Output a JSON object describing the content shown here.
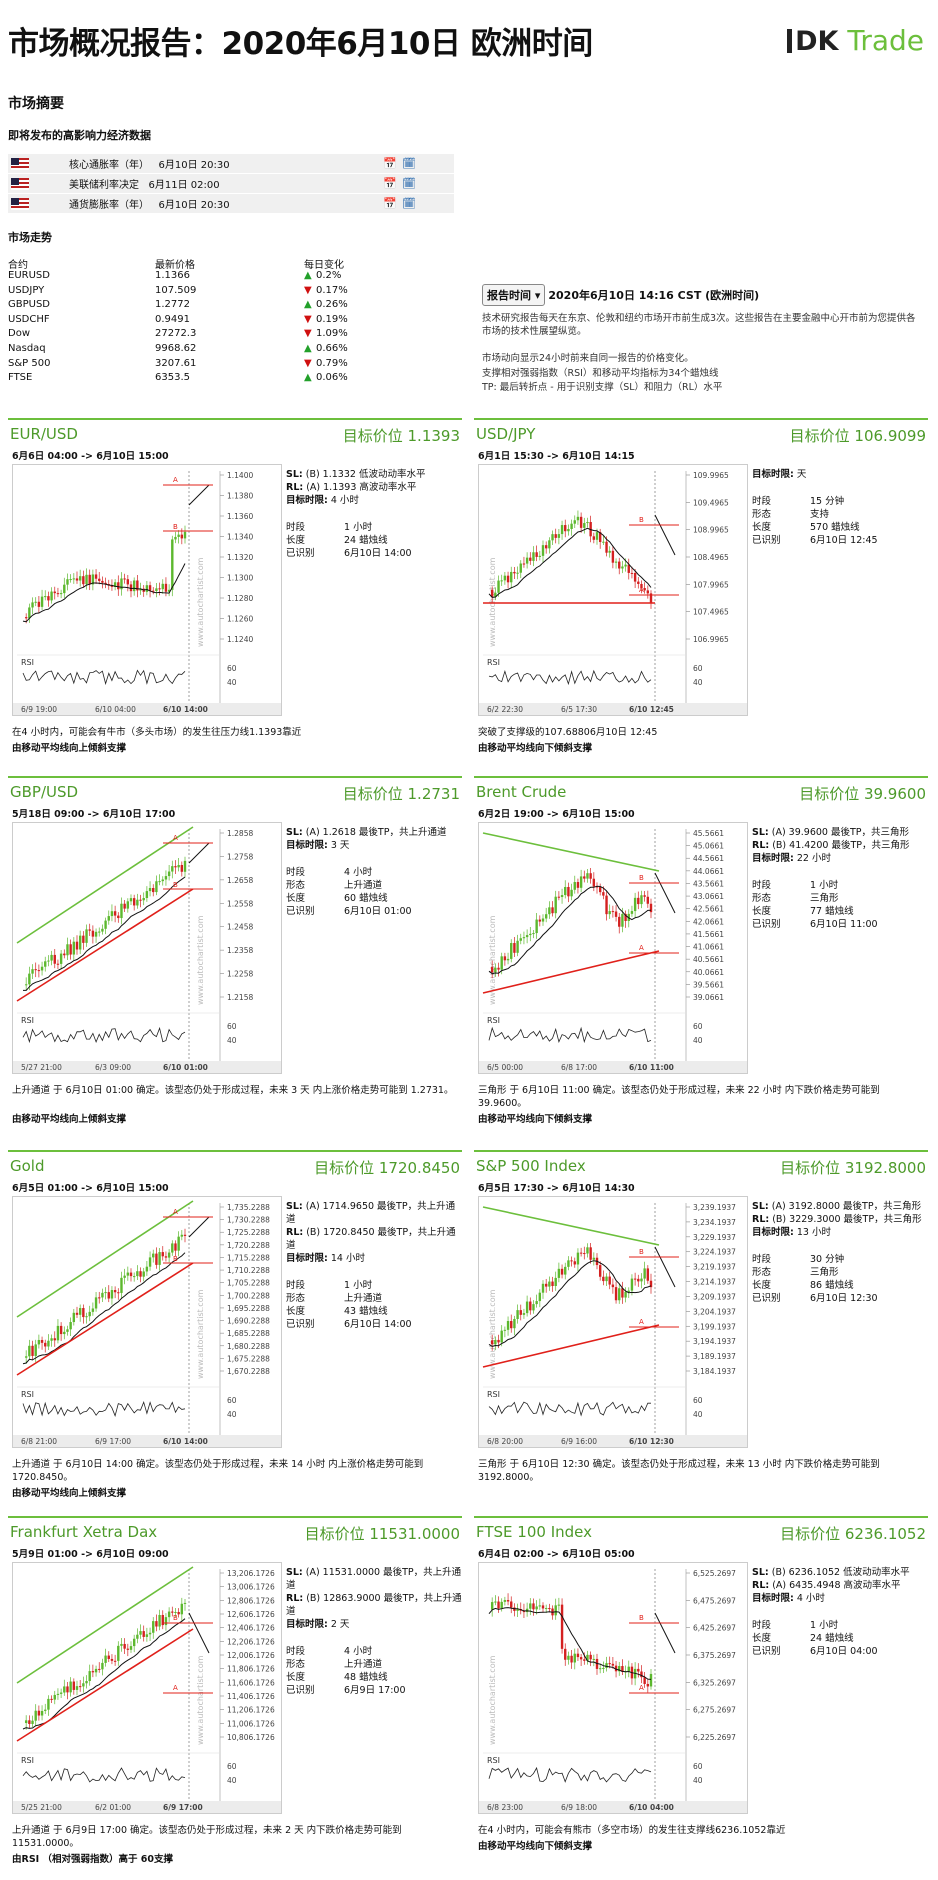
{
  "header": {
    "title": "市场概况报告：2020年6月10日 欧洲时间",
    "logo_dk": "DK",
    "logo_trade": "Trade"
  },
  "summary": {
    "title": "市场摘要",
    "events_title": "即将发布的高影响力经济数据",
    "events": [
      {
        "name": "核心通胀率（年）",
        "time": "6月10日 20:30"
      },
      {
        "name": "美联储利率决定",
        "time": "6月11日 02:00"
      },
      {
        "name": "通货膨胀率（年）",
        "time": "6月10日 20:30"
      }
    ]
  },
  "market": {
    "title": "市场走势",
    "headers": [
      "合约",
      "最新价格",
      "每日变化"
    ],
    "rows": [
      {
        "sym": "EURUSD",
        "price": "1.1366",
        "chg": "0.2%",
        "dir": "up"
      },
      {
        "sym": "USDJPY",
        "price": "107.509",
        "chg": "0.17%",
        "dir": "dn"
      },
      {
        "sym": "GBPUSD",
        "price": "1.2772",
        "chg": "0.26%",
        "dir": "up"
      },
      {
        "sym": "USDCHF",
        "price": "0.9491",
        "chg": "0.19%",
        "dir": "dn"
      },
      {
        "sym": "Dow",
        "price": "27272.3",
        "chg": "1.09%",
        "dir": "dn"
      },
      {
        "sym": "Nasdaq",
        "price": "9968.62",
        "chg": "0.66%",
        "dir": "up"
      },
      {
        "sym": "S&P 500",
        "price": "3207.61",
        "chg": "0.79%",
        "dir": "dn"
      },
      {
        "sym": "FTSE",
        "price": "6353.5",
        "chg": "0.06%",
        "dir": "up"
      }
    ]
  },
  "report": {
    "button": "报告时间",
    "datetime": "2020年6月10日 14:16 CST (欧洲时间)",
    "p1": "技术研究报告每天在东京、伦敦和纽约市场开市前生成3次。这些报告在主要金融中心开市前为您提供各市场的技术性展望纵览。",
    "p2": "市场动向显示24小时前来自同一报告的价格变化。",
    "p3": "支撑相对强弱指数（RSI）和移动平均指标为34个蜡烛线",
    "p4": "TP: 最后转折点 - 用于识别支撑（SL）和阻力（RL）水平"
  },
  "panels": [
    {
      "name": "EUR/USD",
      "target": "目标价位 1.1393",
      "range": "6月6日 04:00 -> 6月10日 15:00",
      "info": [
        [
          "SL:",
          "(B) 1.1332 低波动动率水平"
        ],
        [
          "RL:",
          "(A) 1.1393 高波动率水平"
        ],
        [
          "目标时限:",
          "4 小时"
        ]
      ],
      "rows": [
        [
          "时段",
          "1 小时"
        ],
        [
          "长度",
          "24 蜡烛线"
        ],
        [
          "已识别",
          "6月10日 14:00"
        ]
      ],
      "desc": "在4 小时内，可能会有牛市（多头市场）的发生往压力线1.1393靠近",
      "ma": "由移动平均线向上倾斜支撑",
      "yticks": [
        "1.1400",
        "1.1380",
        "1.1360",
        "1.1340",
        "1.1320",
        "1.1300",
        "1.1280",
        "1.1260",
        "1.1240"
      ],
      "xticks": [
        "6/9 19:00",
        "6/10 04:00",
        "6/10 14:00"
      ],
      "rsi": [
        "60",
        "40"
      ]
    },
    {
      "name": "USD/JPY",
      "target": "目标价位 106.9099",
      "range": "6月1日 15:30 -> 6月10日 14:15",
      "info": [
        [
          "目标时限:",
          "天"
        ]
      ],
      "rows": [
        [
          "时段",
          "15 分钟"
        ],
        [
          "形态",
          "支持"
        ],
        [
          "长度",
          "570 蜡烛线"
        ],
        [
          "已识别",
          "6月10日 12:45"
        ]
      ],
      "desc": "突破了支撑级的107.68806月10日 12:45",
      "ma": "由移动平均线向下倾斜支撑",
      "yticks": [
        "109.9965",
        "109.4965",
        "108.9965",
        "108.4965",
        "107.9965",
        "107.4965",
        "106.9965"
      ],
      "xticks": [
        "6/2 22:30",
        "6/5 17:30",
        "6/10 12:45"
      ],
      "rsi": [
        "60",
        "40"
      ]
    },
    {
      "name": "GBP/USD",
      "target": "目标价位 1.2731",
      "range": "5月18日 09:00 -> 6月10日 17:00",
      "info": [
        [
          "SL:",
          "(A) 1.2618 最後TP，共上升通道"
        ],
        [
          "目标时限:",
          "3 天"
        ]
      ],
      "rows": [
        [
          "时段",
          "4 小时"
        ],
        [
          "形态",
          "上升通道"
        ],
        [
          "长度",
          "60 蜡烛线"
        ],
        [
          "已识别",
          "6月10日 01:00"
        ]
      ],
      "desc": "上升通道 于 6月10日 01:00 确定。该型态仍处于形成过程，未来 3 天 内上涨价格走势可能到 1.2731。",
      "ma": "由移动平均线向上倾斜支撑",
      "yticks": [
        "1.2858",
        "1.2758",
        "1.2658",
        "1.2558",
        "1.2458",
        "1.2358",
        "1.2258",
        "1.2158"
      ],
      "xticks": [
        "5/27 21:00",
        "6/3 09:00",
        "6/10 01:00"
      ],
      "rsi": [
        "60",
        "40"
      ]
    },
    {
      "name": "Brent Crude",
      "target": "目标价位 39.9600",
      "range": "6月2日 19:00 -> 6月10日 15:00",
      "info": [
        [
          "SL:",
          "(A) 39.9600 最後TP，共三角形"
        ],
        [
          "RL:",
          "(B) 41.4200 最後TP，共三角形"
        ],
        [
          "目标时限:",
          "22 小时"
        ]
      ],
      "rows": [
        [
          "时段",
          "1 小时"
        ],
        [
          "形态",
          "三角形"
        ],
        [
          "长度",
          "77 蜡烛线"
        ],
        [
          "已识别",
          "6月10日 11:00"
        ]
      ],
      "desc": "三角形 于 6月10日 11:00 确定。该型态仍处于形成过程，未来 22 小时 内下跌价格走势可能到 39.9600。",
      "ma": "由移动平均线向下倾斜支撑",
      "yticks": [
        "45.5661",
        "45.0661",
        "44.5661",
        "44.0661",
        "43.5661",
        "43.0661",
        "42.5661",
        "42.0661",
        "41.5661",
        "41.0661",
        "40.5661",
        "40.0661",
        "39.5661",
        "39.0661"
      ],
      "xticks": [
        "6/5 00:00",
        "6/8 17:00",
        "6/10 11:00"
      ],
      "rsi": [
        "60",
        "40"
      ]
    },
    {
      "name": "Gold",
      "target": "目标价位 1720.8450",
      "range": "6月5日 01:00 -> 6月10日 15:00",
      "info": [
        [
          "SL:",
          "(A) 1714.9650 最後TP，共上升通道"
        ],
        [
          "RL:",
          "(B) 1720.8450 最後TP，共上升通道"
        ],
        [
          "目标时限:",
          "14 小时"
        ]
      ],
      "rows": [
        [
          "时段",
          "1 小时"
        ],
        [
          "形态",
          "上升通道"
        ],
        [
          "长度",
          "43 蜡烛线"
        ],
        [
          "已识别",
          "6月10日 14:00"
        ]
      ],
      "desc": "上升通道 于 6月10日 14:00 确定。该型态仍处于形成过程，未来 14 小时 内上涨价格走势可能到 1720.8450。",
      "ma": "由移动平均线向上倾斜支撑",
      "yticks": [
        "1,735.2288",
        "1,730.2288",
        "1,725.2288",
        "1,720.2288",
        "1,715.2288",
        "1,710.2288",
        "1,705.2288",
        "1,700.2288",
        "1,695.2288",
        "1,690.2288",
        "1,685.2288",
        "1,680.2288",
        "1,675.2288",
        "1,670.2288"
      ],
      "xticks": [
        "6/8 21:00",
        "6/9 17:00",
        "6/10 14:00"
      ],
      "rsi": [
        "60",
        "40"
      ]
    },
    {
      "name": "S&P 500 Index",
      "target": "目标价位 3192.8000",
      "range": "6月5日 17:30 -> 6月10日 14:30",
      "info": [
        [
          "SL:",
          "(A) 3192.8000 最後TP，共三角形"
        ],
        [
          "RL:",
          "(B) 3229.3000 最後TP，共三角形"
        ],
        [
          "目标时限:",
          "13 小时"
        ]
      ],
      "rows": [
        [
          "时段",
          "30 分钟"
        ],
        [
          "形态",
          "三角形"
        ],
        [
          "长度",
          "86 蜡烛线"
        ],
        [
          "已识别",
          "6月10日 12:30"
        ]
      ],
      "desc": "三角形 于 6月10日 12:30 确定。该型态仍处于形成过程，未来 13 小时 内下跌价格走势可能到 3192.8000。",
      "ma": "",
      "yticks": [
        "3,239.1937",
        "3,234.1937",
        "3,229.1937",
        "3,224.1937",
        "3,219.1937",
        "3,214.1937",
        "3,209.1937",
        "3,204.1937",
        "3,199.1937",
        "3,194.1937",
        "3,189.1937",
        "3,184.1937"
      ],
      "xticks": [
        "6/8 20:00",
        "6/9 16:00",
        "6/10 12:30"
      ],
      "rsi": [
        "60",
        "40"
      ]
    },
    {
      "name": "Frankfurt Xetra Dax",
      "target": "目标价位 11531.0000",
      "range": "5月9日 01:00 -> 6月10日 09:00",
      "info": [
        [
          "SL:",
          "(A) 11531.0000 最後TP，共上升通道"
        ],
        [
          "RL:",
          "(B) 12863.9000 最後TP，共上升通道"
        ],
        [
          "目标时限:",
          "2 天"
        ]
      ],
      "rows": [
        [
          "时段",
          "4 小时"
        ],
        [
          "形态",
          "上升通道"
        ],
        [
          "长度",
          "48 蜡烛线"
        ],
        [
          "已识别",
          "6月9日 17:00"
        ]
      ],
      "desc": "上升通道 于 6月9日 17:00 确定。该型态仍处于形成过程，未来 2 天 内下跌价格走势可能到 11531.0000。",
      "ma": "由RSI （相对强弱指数）高于 60支撑",
      "yticks": [
        "13,206.1726",
        "13,006.1726",
        "12,806.1726",
        "12,606.1726",
        "12,406.1726",
        "12,206.1726",
        "12,006.1726",
        "11,806.1726",
        "11,606.1726",
        "11,406.1726",
        "11,206.1726",
        "11,006.1726",
        "10,806.1726"
      ],
      "xticks": [
        "5/25 21:00",
        "6/2 01:00",
        "6/9 17:00"
      ],
      "rsi": [
        "60",
        "40"
      ]
    },
    {
      "name": "FTSE 100 Index",
      "target": "目标价位 6236.1052",
      "range": "6月4日 02:00 -> 6月10日 05:00",
      "info": [
        [
          "SL:",
          "(B) 6236.1052 低波动动率水平"
        ],
        [
          "RL:",
          "(A) 6435.4948 高波动率水平"
        ],
        [
          "目标时限:",
          "4 小时"
        ]
      ],
      "rows": [
        [
          "时段",
          "1 小时"
        ],
        [
          "长度",
          "24 蜡烛线"
        ],
        [
          "已识别",
          "6月10日 04:00"
        ]
      ],
      "desc": "在4 小时内，可能会有熊市（多空市场）的发生往支撑线6236.1052靠近",
      "ma": "由移动平均线向下倾斜支撑",
      "yticks": [
        "6,525.2697",
        "6,475.2697",
        "6,425.2697",
        "6,375.2697",
        "6,325.2697",
        "6,275.2697",
        "6,225.2697"
      ],
      "xticks": [
        "6/8 23:00",
        "6/9 18:00",
        "6/10 04:00"
      ],
      "rsi": [
        "60",
        "40"
      ]
    }
  ],
  "watermark": "www.autochartist.com",
  "rsi_label": "RSI",
  "colors": {
    "accent": "#6cbf3c",
    "up": "#22a02a",
    "down": "#d01010"
  }
}
